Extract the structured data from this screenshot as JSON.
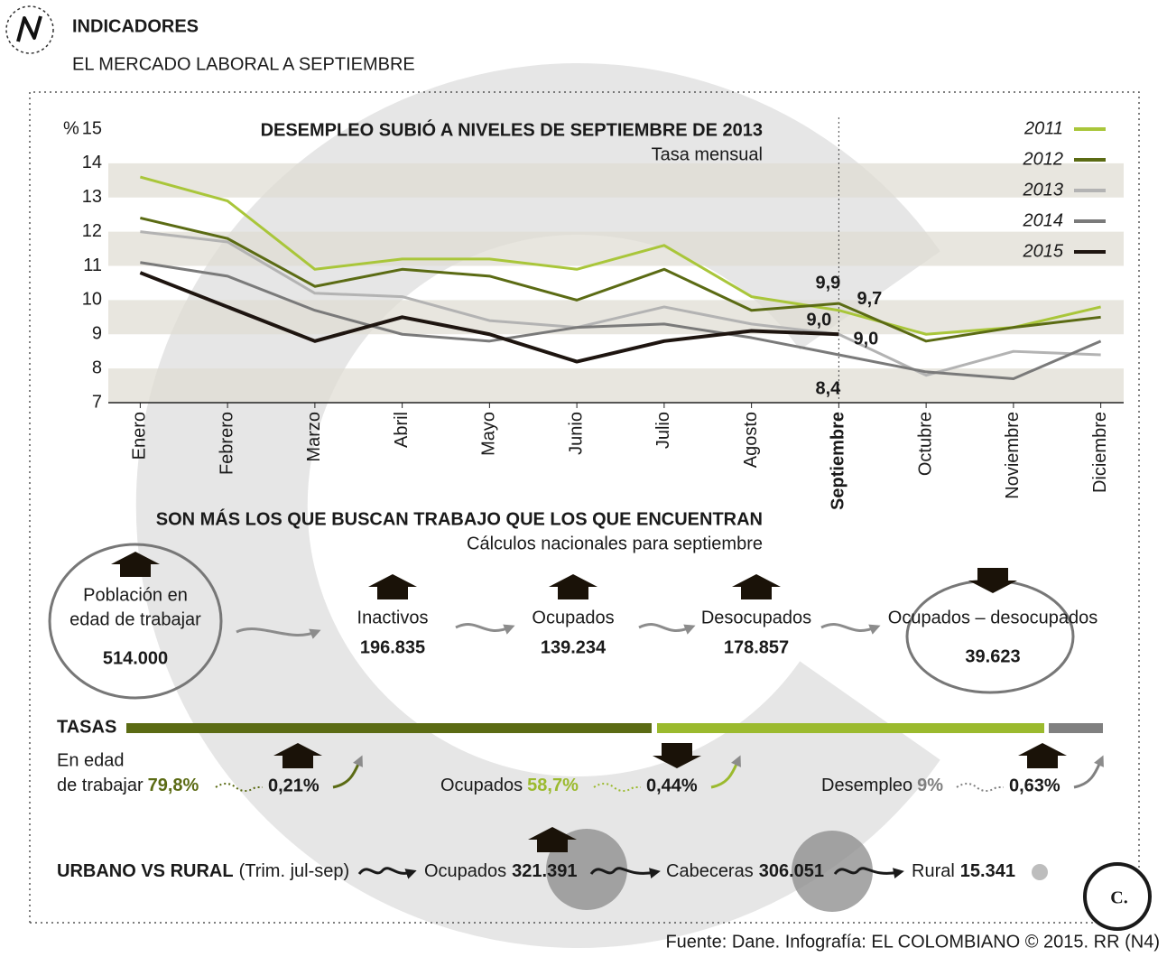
{
  "header": {
    "section": "INDICADORES",
    "title": "EL MERCADO LABORAL A SEPTIEMBRE"
  },
  "chart_data": {
    "type": "line",
    "title": "DESEMPLEO SUBIÓ A NIVELES DE SEPTIEMBRE DE 2013",
    "subtitle": "Tasa mensual",
    "y_label": "%",
    "categories": [
      "Enero",
      "Febrero",
      "Marzo",
      "Abril",
      "Mayo",
      "Junio",
      "Julio",
      "Agosto",
      "Septiembre",
      "Octubre",
      "Noviembre",
      "Diciembre"
    ],
    "highlight": 8,
    "ylim": [
      7,
      15
    ],
    "yticks": [
      7,
      8,
      9,
      10,
      11,
      12,
      13,
      14,
      15
    ],
    "legend": "top-right",
    "series": [
      {
        "name": "2011",
        "color": "#a9c63a",
        "values": [
          13.6,
          12.9,
          10.9,
          11.2,
          11.2,
          10.9,
          11.6,
          10.1,
          9.7,
          9.0,
          9.2,
          9.8
        ],
        "value_labels": [
          null,
          null,
          null,
          null,
          null,
          null,
          null,
          null,
          "9,7",
          null,
          null,
          null
        ]
      },
      {
        "name": "2012",
        "color": "#5b6b14",
        "values": [
          12.4,
          11.8,
          10.4,
          10.9,
          10.7,
          10.0,
          10.9,
          9.7,
          9.9,
          8.8,
          9.2,
          9.5
        ],
        "value_labels": [
          null,
          null,
          null,
          null,
          null,
          null,
          null,
          null,
          "9,9",
          null,
          null,
          null
        ]
      },
      {
        "name": "2013",
        "color": "#b3b3b3",
        "values": [
          12.0,
          11.7,
          10.2,
          10.1,
          9.4,
          9.2,
          9.8,
          9.3,
          9.0,
          7.8,
          8.5,
          8.4
        ],
        "value_labels": [
          null,
          null,
          null,
          null,
          null,
          null,
          null,
          null,
          "9,0",
          null,
          null,
          null
        ]
      },
      {
        "name": "2014",
        "color": "#7a7a7a",
        "values": [
          11.1,
          10.7,
          9.7,
          9.0,
          8.8,
          9.2,
          9.3,
          8.9,
          8.4,
          7.9,
          7.7,
          8.8
        ],
        "value_labels": [
          null,
          null,
          null,
          null,
          null,
          null,
          null,
          null,
          "8,4",
          null,
          null,
          null
        ]
      },
      {
        "name": "2015",
        "color": "#1e1510",
        "values": [
          10.8,
          9.8,
          8.8,
          9.5,
          9.0,
          8.2,
          8.8,
          9.1,
          9.0,
          null,
          null,
          null
        ],
        "value_labels": [
          null,
          null,
          null,
          null,
          null,
          null,
          null,
          null,
          "9,0",
          null,
          null,
          null
        ]
      }
    ]
  },
  "flow": {
    "title": "SON MÁS LOS QUE BUSCAN TRABAJO QUE LOS QUE ENCUENTRAN",
    "subtitle": "Cálculos nacionales para septiembre",
    "items": [
      {
        "label": [
          "Población en",
          "edad de trabajar"
        ],
        "value": "514.000",
        "trend": "up"
      },
      {
        "label": [
          "Inactivos"
        ],
        "value": "196.835",
        "trend": "up"
      },
      {
        "label": [
          "Ocupados"
        ],
        "value": "139.234",
        "trend": "up"
      },
      {
        "label": [
          "Desocupados"
        ],
        "value": "178.857",
        "trend": "up"
      },
      {
        "label": [
          "Ocupados – desocupados"
        ],
        "value": "39.623",
        "trend": "down"
      }
    ]
  },
  "rates": {
    "title": "TASAS",
    "items": [
      {
        "label": [
          "En edad",
          "de trabajar"
        ],
        "rate": "79,8%",
        "change": "0,21%",
        "color": "#5b6b14",
        "trend": "up"
      },
      {
        "label": [
          "Ocupados"
        ],
        "rate": "58,7%",
        "change": "0,44%",
        "color": "#9bba2e",
        "trend": "down"
      },
      {
        "label": [
          "Desempleo"
        ],
        "rate": "9%",
        "change": "0,63%",
        "color": "#808080",
        "trend": "up"
      }
    ]
  },
  "urban": {
    "title": "URBANO VS RURAL",
    "note": "(Trim. jul-sep)",
    "items": [
      {
        "label": "Ocupados",
        "value": "321.391"
      },
      {
        "label": "Cabeceras",
        "value": "306.051"
      },
      {
        "label": "Rural",
        "value": "15.341"
      }
    ]
  },
  "footer": "Fuente: Dane. Infografía: EL COLOMBIANO © 2015. RR (N4)",
  "brand": "C."
}
